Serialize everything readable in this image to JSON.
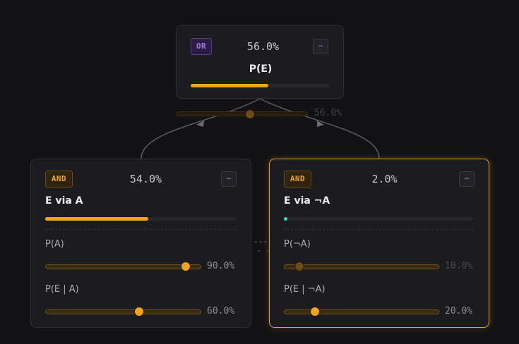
{
  "colors": {
    "background": "#121214",
    "accent": "#f0a41a",
    "or_badge": "#a679e8",
    "selected_border": "#f0a41a",
    "zero_dot": "#3fd4c4"
  },
  "nodes": {
    "or_node": {
      "badge": "OR",
      "percent": "56.0%",
      "title": "P(E)",
      "collapse_icon": "−",
      "bar_fraction": 0.56
    },
    "and_a": {
      "badge": "AND",
      "percent": "54.0%",
      "title": "E via A",
      "collapse_icon": "−",
      "bar_fraction": 0.54,
      "params": [
        {
          "label": "P(A)",
          "value": "90.0%",
          "fraction": 0.9
        },
        {
          "label": "P(E | A)",
          "value": "60.0%",
          "fraction": 0.6
        }
      ]
    },
    "and_not_a": {
      "badge": "AND",
      "percent": "2.0%",
      "title": "E via ¬A",
      "collapse_icon": "−",
      "bar_fraction": 0.02,
      "selected": true,
      "params": [
        {
          "label": "P(¬A)",
          "value": "10.0%",
          "fraction": 0.1
        },
        {
          "label": "P(E | ¬A)",
          "value": "20.0%",
          "fraction": 0.2
        }
      ]
    }
  },
  "edge_control": {
    "value": "56.0%",
    "fraction": 0.56
  }
}
